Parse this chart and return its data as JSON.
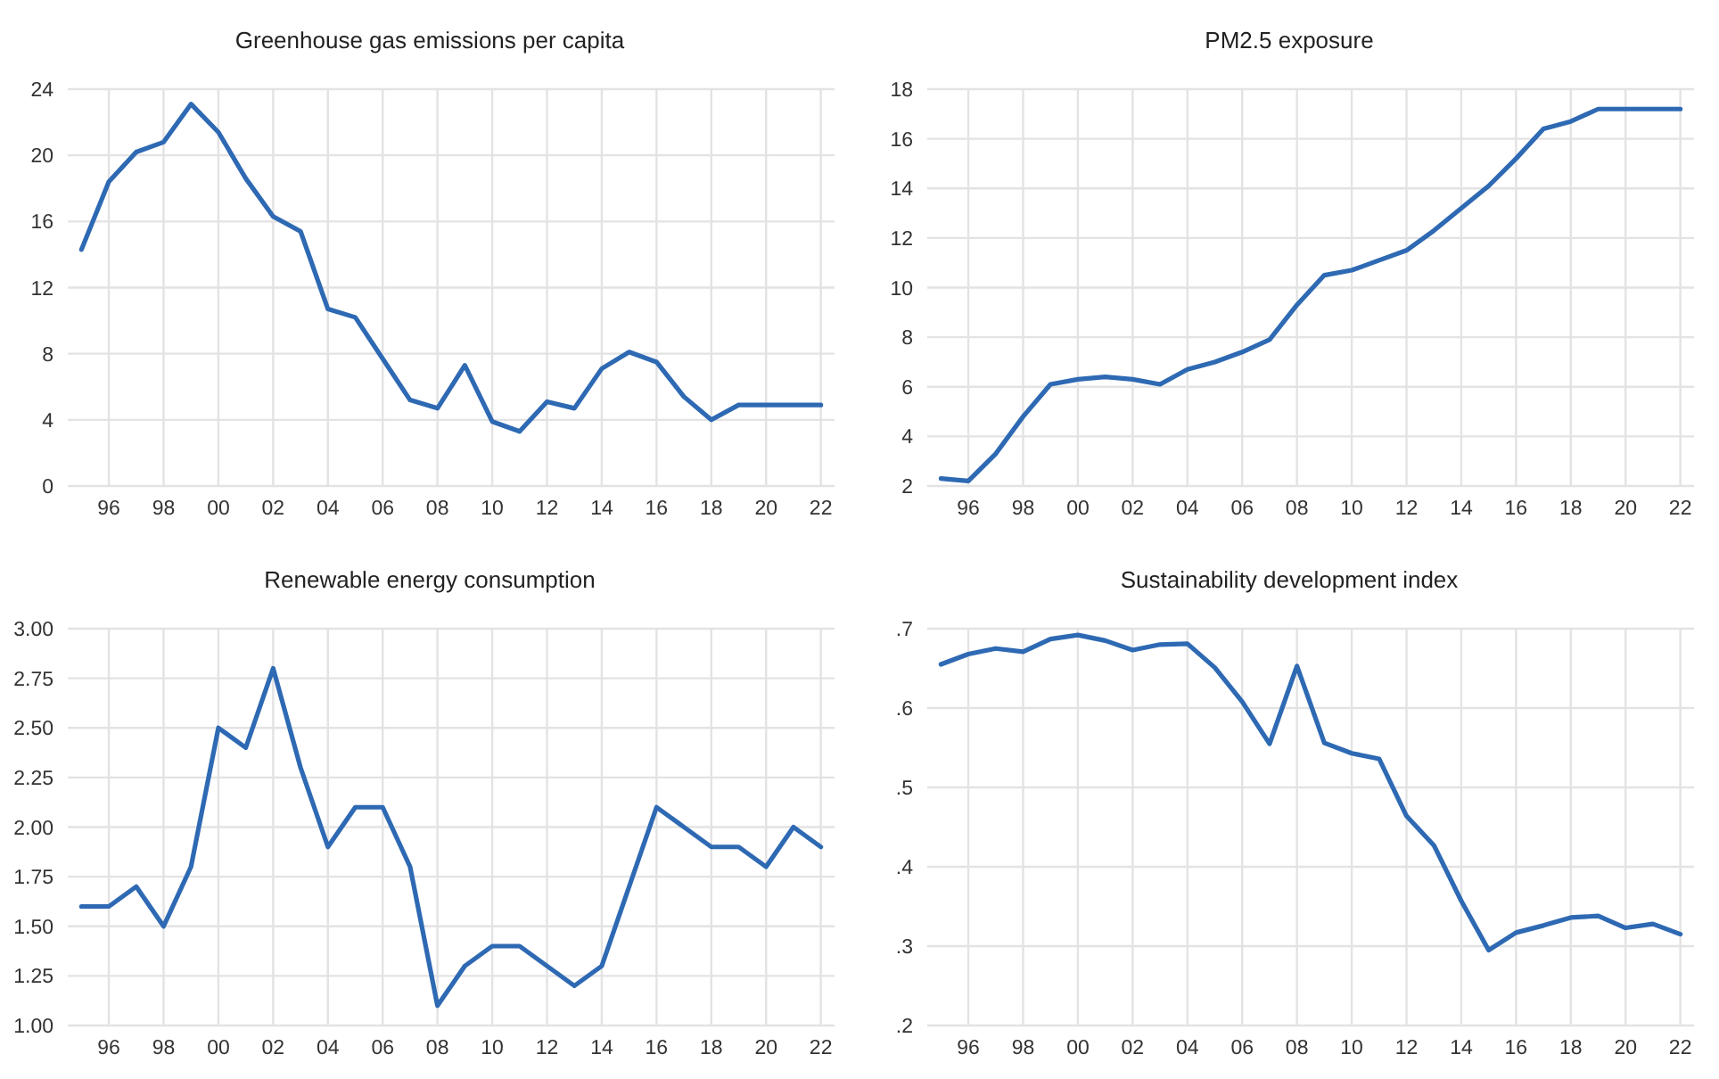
{
  "chart_data": [
    {
      "type": "line",
      "title": "Greenhouse gas emissions per capita",
      "x": [
        1995,
        1996,
        1997,
        1998,
        1999,
        2000,
        2001,
        2002,
        2003,
        2004,
        2005,
        2006,
        2007,
        2008,
        2009,
        2010,
        2011,
        2012,
        2013,
        2014,
        2015,
        2016,
        2017,
        2018,
        2019,
        2020,
        2021,
        2022
      ],
      "series": [
        {
          "color": "#2e69b3",
          "values": [
            14.3,
            18.4,
            20.2,
            20.8,
            23.1,
            21.4,
            18.6,
            16.3,
            15.4,
            10.7,
            10.2,
            7.7,
            5.2,
            4.7,
            7.3,
            3.9,
            3.3,
            5.1,
            4.7,
            7.1,
            8.1,
            7.5,
            5.4,
            4.0,
            4.9,
            4.9,
            4.9,
            4.9
          ]
        }
      ],
      "xlim": [
        1994.5,
        2022.5
      ],
      "xticks": [
        {
          "value": 1996,
          "label": "96"
        },
        {
          "value": 1998,
          "label": "98"
        },
        {
          "value": 2000,
          "label": "00"
        },
        {
          "value": 2002,
          "label": "02"
        },
        {
          "value": 2004,
          "label": "04"
        },
        {
          "value": 2006,
          "label": "06"
        },
        {
          "value": 2008,
          "label": "08"
        },
        {
          "value": 2010,
          "label": "10"
        },
        {
          "value": 2012,
          "label": "12"
        },
        {
          "value": 2014,
          "label": "14"
        },
        {
          "value": 2016,
          "label": "16"
        },
        {
          "value": 2018,
          "label": "18"
        },
        {
          "value": 2020,
          "label": "20"
        },
        {
          "value": 2022,
          "label": "22"
        }
      ],
      "ylim": [
        0,
        24
      ],
      "yticks": [
        0,
        4,
        8,
        12,
        16,
        20,
        24
      ],
      "grid": true,
      "marker": "none",
      "line_style": "solid"
    },
    {
      "type": "line",
      "title": "PM2.5 exposure",
      "x": [
        1995,
        1996,
        1997,
        1998,
        1999,
        2000,
        2001,
        2002,
        2003,
        2004,
        2005,
        2006,
        2007,
        2008,
        2009,
        2010,
        2011,
        2012,
        2013,
        2014,
        2015,
        2016,
        2017,
        2018,
        2019,
        2020,
        2021,
        2022
      ],
      "series": [
        {
          "color": "#2e69b3",
          "values": [
            2.3,
            2.2,
            3.3,
            4.8,
            6.1,
            6.3,
            6.4,
            6.3,
            6.1,
            6.7,
            7.0,
            7.4,
            7.9,
            9.3,
            10.5,
            10.7,
            11.1,
            11.5,
            12.3,
            13.2,
            14.1,
            15.2,
            16.4,
            16.7,
            17.2,
            17.2,
            17.2,
            17.2
          ]
        }
      ],
      "xlim": [
        1994.5,
        2022.5
      ],
      "xticks": [
        {
          "value": 1996,
          "label": "96"
        },
        {
          "value": 1998,
          "label": "98"
        },
        {
          "value": 2000,
          "label": "00"
        },
        {
          "value": 2002,
          "label": "02"
        },
        {
          "value": 2004,
          "label": "04"
        },
        {
          "value": 2006,
          "label": "06"
        },
        {
          "value": 2008,
          "label": "08"
        },
        {
          "value": 2010,
          "label": "10"
        },
        {
          "value": 2012,
          "label": "12"
        },
        {
          "value": 2014,
          "label": "14"
        },
        {
          "value": 2016,
          "label": "16"
        },
        {
          "value": 2018,
          "label": "18"
        },
        {
          "value": 2020,
          "label": "20"
        },
        {
          "value": 2022,
          "label": "22"
        }
      ],
      "ylim": [
        2,
        18
      ],
      "yticks": [
        2,
        4,
        6,
        8,
        10,
        12,
        14,
        16,
        18
      ],
      "grid": true,
      "marker": "none",
      "line_style": "solid"
    },
    {
      "type": "line",
      "title": "Renewable energy consumption",
      "x": [
        1995,
        1996,
        1997,
        1998,
        1999,
        2000,
        2001,
        2002,
        2003,
        2004,
        2005,
        2006,
        2007,
        2008,
        2009,
        2010,
        2011,
        2012,
        2013,
        2014,
        2015,
        2016,
        2017,
        2018,
        2019,
        2020,
        2021,
        2022
      ],
      "series": [
        {
          "color": "#2e69b3",
          "values": [
            1.6,
            1.6,
            1.7,
            1.5,
            1.8,
            2.5,
            2.4,
            2.8,
            2.3,
            1.9,
            2.1,
            2.1,
            1.8,
            1.1,
            1.3,
            1.4,
            1.4,
            1.3,
            1.2,
            1.3,
            1.7,
            2.1,
            2.0,
            1.9,
            1.9,
            1.8,
            2.0,
            1.9
          ]
        }
      ],
      "xlim": [
        1994.5,
        2022.5
      ],
      "xticks": [
        {
          "value": 1996,
          "label": "96"
        },
        {
          "value": 1998,
          "label": "98"
        },
        {
          "value": 2000,
          "label": "00"
        },
        {
          "value": 2002,
          "label": "02"
        },
        {
          "value": 2004,
          "label": "04"
        },
        {
          "value": 2006,
          "label": "06"
        },
        {
          "value": 2008,
          "label": "08"
        },
        {
          "value": 2010,
          "label": "10"
        },
        {
          "value": 2012,
          "label": "12"
        },
        {
          "value": 2014,
          "label": "14"
        },
        {
          "value": 2016,
          "label": "16"
        },
        {
          "value": 2018,
          "label": "18"
        },
        {
          "value": 2020,
          "label": "20"
        },
        {
          "value": 2022,
          "label": "22"
        }
      ],
      "ylim": [
        1,
        3
      ],
      "yticks": [
        {
          "value": 1,
          "label": "1.00"
        },
        {
          "value": 1.25,
          "label": "1.25"
        },
        {
          "value": 1.5,
          "label": "1.50"
        },
        {
          "value": 1.75,
          "label": "1.75"
        },
        {
          "value": 2,
          "label": "2.00"
        },
        {
          "value": 2.25,
          "label": "2.25"
        },
        {
          "value": 2.5,
          "label": "2.50"
        },
        {
          "value": 2.75,
          "label": "2.75"
        },
        {
          "value": 3,
          "label": "3.00"
        }
      ],
      "grid": true,
      "marker": "none",
      "line_style": "solid"
    },
    {
      "type": "line",
      "title": "Sustainability development index",
      "x": [
        1995,
        1996,
        1997,
        1998,
        1999,
        2000,
        2001,
        2002,
        2003,
        2004,
        2005,
        2006,
        2007,
        2008,
        2009,
        2010,
        2011,
        2012,
        2013,
        2014,
        2015,
        2016,
        2017,
        2018,
        2019,
        2020,
        2021,
        2022
      ],
      "series": [
        {
          "color": "#2e69b3",
          "values": [
            0.655,
            0.668,
            0.675,
            0.671,
            0.687,
            0.692,
            0.685,
            0.673,
            0.68,
            0.681,
            0.651,
            0.608,
            0.555,
            0.653,
            0.556,
            0.543,
            0.536,
            0.464,
            0.427,
            0.357,
            0.295,
            0.317,
            0.326,
            0.336,
            0.338,
            0.323,
            0.328,
            0.315
          ]
        }
      ],
      "xlim": [
        1994.5,
        2022.5
      ],
      "xticks": [
        {
          "value": 1996,
          "label": "96"
        },
        {
          "value": 1998,
          "label": "98"
        },
        {
          "value": 2000,
          "label": "00"
        },
        {
          "value": 2002,
          "label": "02"
        },
        {
          "value": 2004,
          "label": "04"
        },
        {
          "value": 2006,
          "label": "06"
        },
        {
          "value": 2008,
          "label": "08"
        },
        {
          "value": 2010,
          "label": "10"
        },
        {
          "value": 2012,
          "label": "12"
        },
        {
          "value": 2014,
          "label": "14"
        },
        {
          "value": 2016,
          "label": "16"
        },
        {
          "value": 2018,
          "label": "18"
        },
        {
          "value": 2020,
          "label": "20"
        },
        {
          "value": 2022,
          "label": "22"
        }
      ],
      "ylim": [
        0.2,
        0.7
      ],
      "yticks": [
        {
          "value": 0.2,
          "label": ".2"
        },
        {
          "value": 0.3,
          "label": ".3"
        },
        {
          "value": 0.4,
          "label": ".4"
        },
        {
          "value": 0.5,
          "label": ".5"
        },
        {
          "value": 0.6,
          "label": ".6"
        },
        {
          "value": 0.7,
          "label": ".7"
        }
      ],
      "grid": true,
      "marker": "none",
      "line_style": "solid"
    }
  ]
}
